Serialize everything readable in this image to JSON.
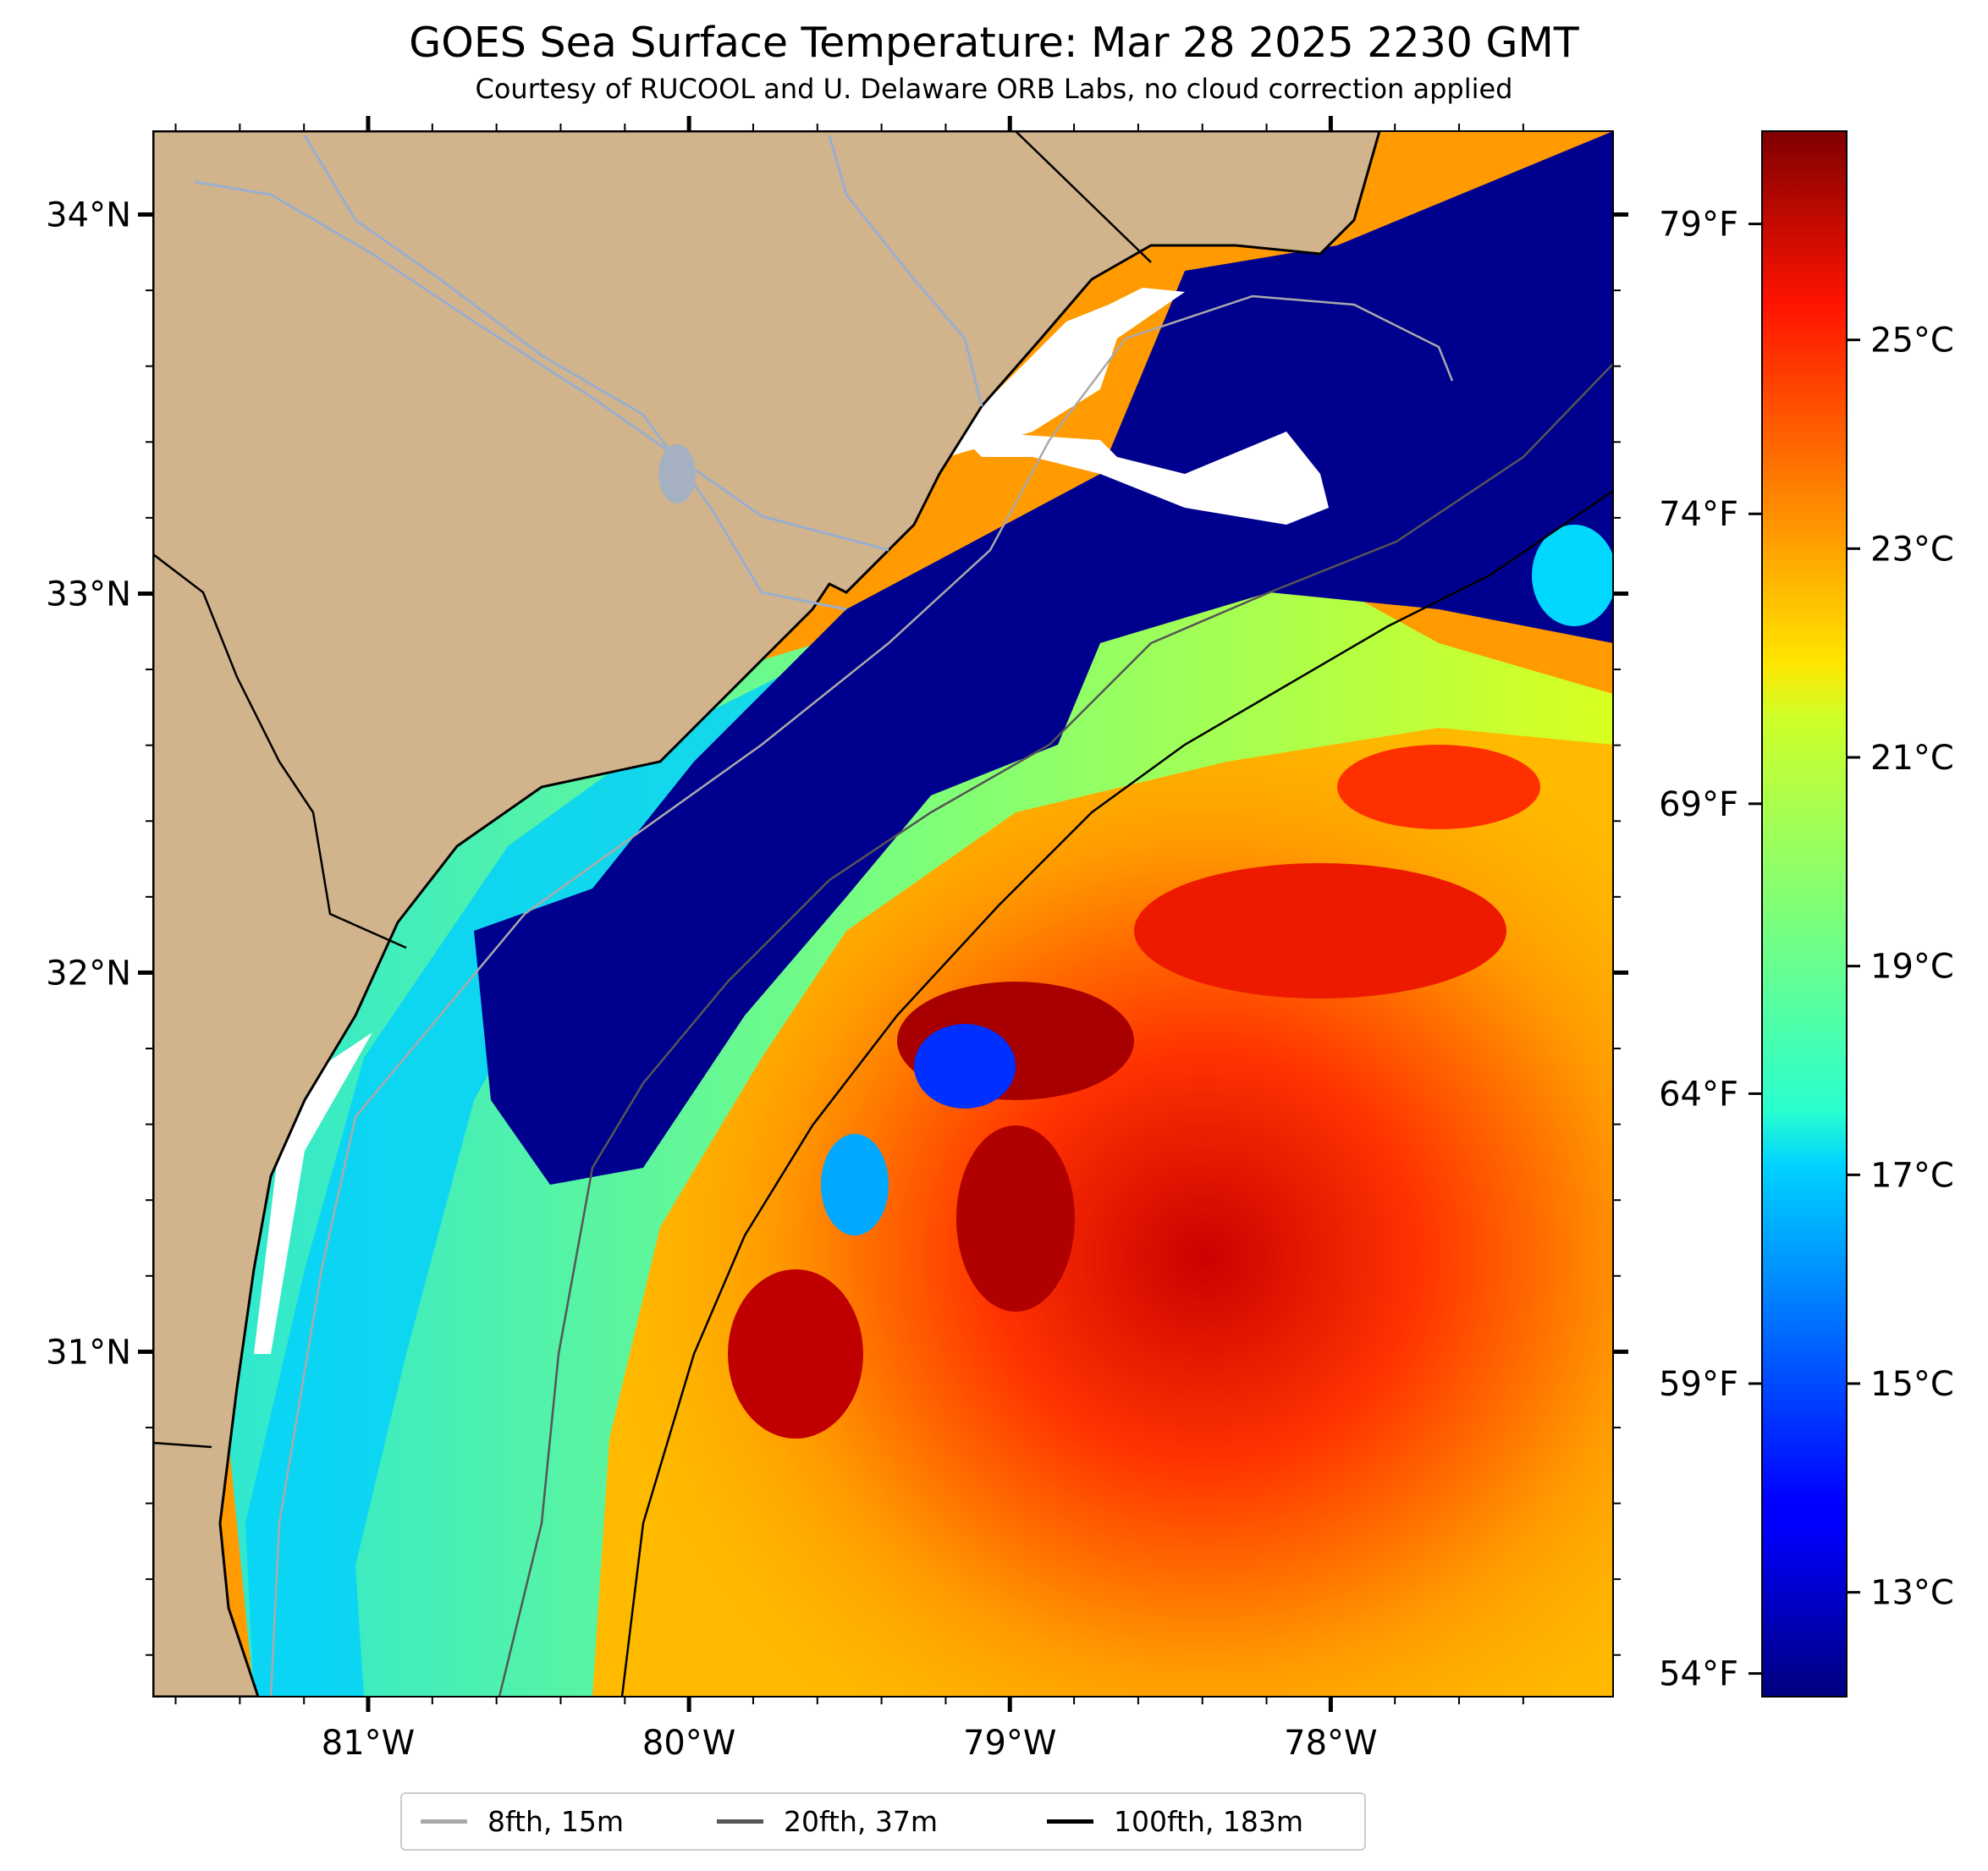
{
  "title": "GOES Sea Surface Temperature: Mar 28 2025 2230 GMT",
  "subtitle": "Courtesy of RUCOOL and U. Delaware ORB Labs, no cloud correction applied",
  "map": {
    "lon_range": [
      -81.67,
      -77.12
    ],
    "lat_range": [
      30.09,
      34.22
    ],
    "lat_ticks": [
      {
        "value": 34,
        "label": "34°N"
      },
      {
        "value": 33,
        "label": "33°N"
      },
      {
        "value": 32,
        "label": "32°N"
      },
      {
        "value": 31,
        "label": "31°N"
      }
    ],
    "lon_ticks": [
      {
        "value": -81,
        "label": "81°W"
      },
      {
        "value": -80,
        "label": "80°W"
      },
      {
        "value": -79,
        "label": "79°W"
      },
      {
        "value": -78,
        "label": "78°W"
      }
    ],
    "colors": {
      "land": "#d2b48c",
      "cold_water": "#00008f",
      "cloud": "#ffffff",
      "coast": "#000000"
    }
  },
  "temperature_scale": {
    "colormap": "jet",
    "celsius_range": [
      12,
      27
    ],
    "celsius_ticks": [
      "13°C",
      "15°C",
      "17°C",
      "19°C",
      "21°C",
      "23°C",
      "25°C"
    ],
    "fahrenheit_ticks": [
      "54°F",
      "59°F",
      "64°F",
      "69°F",
      "74°F",
      "79°F"
    ]
  },
  "legend": [
    {
      "label": "8fth, 15m",
      "color": "#aaaaaa"
    },
    {
      "label": "20fth, 37m",
      "color": "#555555"
    },
    {
      "label": "100fth, 183m",
      "color": "#000000"
    }
  ]
}
